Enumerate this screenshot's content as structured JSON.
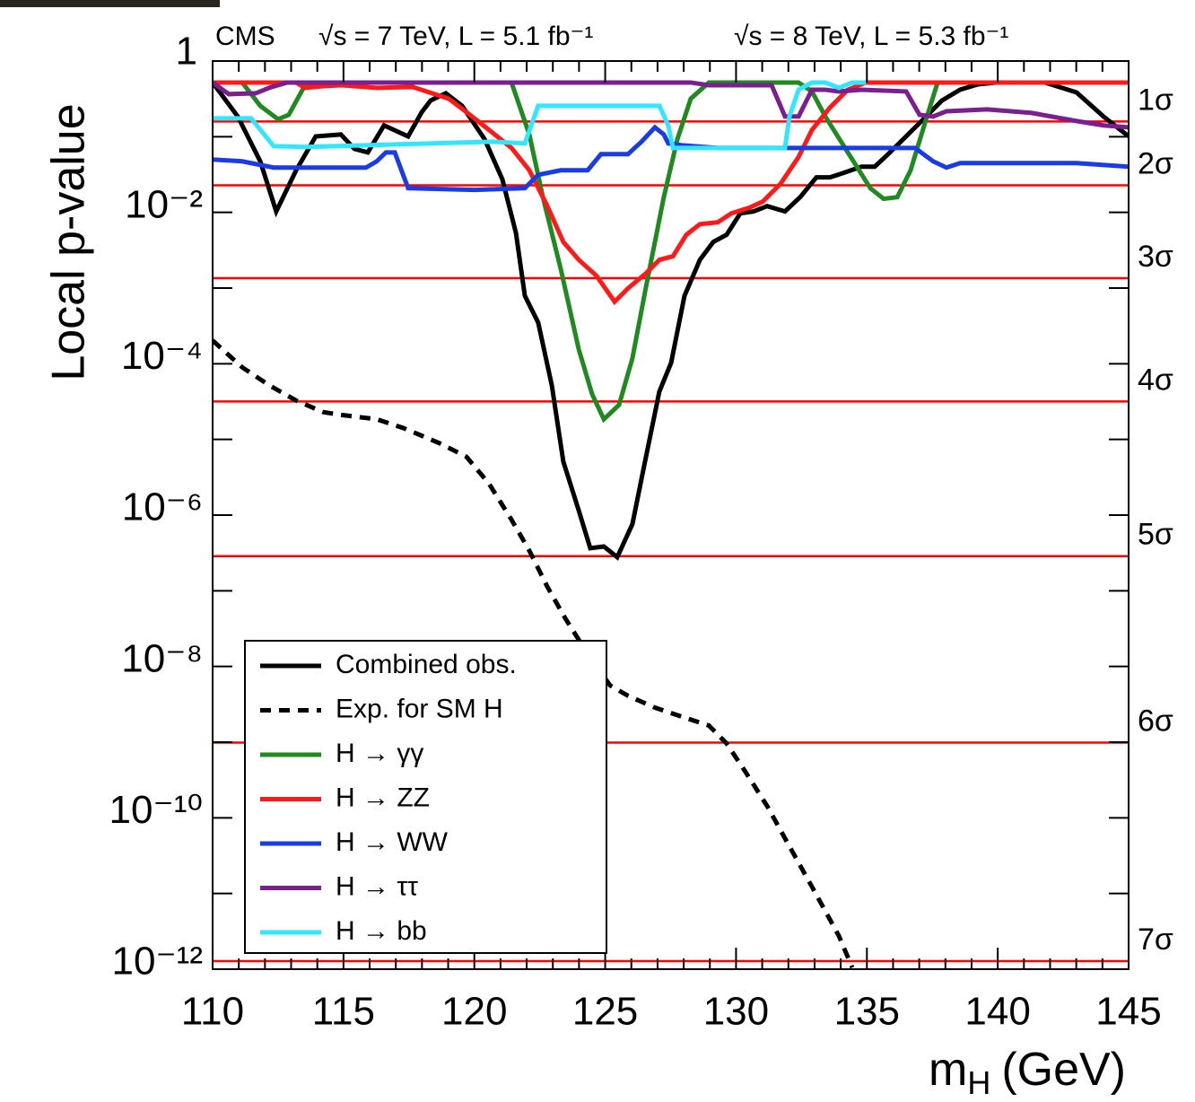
{
  "chart_data": {
    "type": "line",
    "annotations": [
      "CMS",
      "√s = 7 TeV, L = 5.1 fb⁻¹",
      "√s = 8 TeV, L = 5.3 fb⁻¹"
    ],
    "x_label": {
      "symbol": "m",
      "subscript": "H",
      "unit": "(GeV)"
    },
    "y_label": "Local p-value",
    "log_y": true,
    "xlim": [
      110,
      145
    ],
    "xticks": [
      110,
      115,
      120,
      125,
      130,
      135,
      140,
      145
    ],
    "xminorticks": [
      111,
      112,
      113,
      114,
      116,
      117,
      118,
      119,
      121,
      122,
      123,
      124,
      126,
      127,
      128,
      129,
      131,
      132,
      133,
      134,
      136,
      137,
      138,
      139,
      141,
      142,
      143,
      144
    ],
    "ylim": [
      1e-12,
      1
    ],
    "yticks": [
      1,
      {
        "value": 0.01,
        "label": "10⁻²"
      },
      {
        "value": 0.0001,
        "label": "10⁻⁴"
      },
      {
        "value": 1e-06,
        "label": "10⁻⁶"
      },
      {
        "value": 1e-08,
        "label": "10⁻⁸"
      },
      {
        "value": 1e-10,
        "label": "10⁻¹⁰"
      },
      {
        "value": 1e-12,
        "label": "10⁻¹²"
      }
    ],
    "yminorticks": [
      0.1,
      0.001,
      1e-05,
      1e-07,
      1e-09,
      1e-11
    ],
    "sigma_lines": [
      {
        "value": 0.1587,
        "label": "1σ"
      },
      {
        "value": 0.02275,
        "label": "2σ"
      },
      {
        "value": 0.00135,
        "label": "3σ"
      },
      {
        "value": 3.17e-05,
        "label": "4σ"
      },
      {
        "value": 2.87e-07,
        "label": "5σ"
      },
      {
        "value": 9.87e-10,
        "label": "6σ"
      },
      {
        "value": 1.28e-12,
        "label": "7σ"
      }
    ],
    "sigma_color": "#ff0000",
    "series": [
      {
        "name": "Combined  obs.",
        "color": "#000000",
        "x": [
          110,
          110.96,
          111.82,
          112.43,
          113.19,
          113.94,
          114.9,
          115.42,
          115.93,
          116.55,
          117.47,
          117.99,
          118.33,
          118.91,
          119.53,
          120.39,
          121.07,
          121.59,
          121.93,
          122.44,
          122.96,
          123.4,
          123.99,
          124.43,
          124.95,
          125.46,
          126.04,
          126.49,
          127.07,
          127.52,
          128.03,
          128.62,
          129.13,
          129.64,
          130.16,
          130.67,
          131.19,
          131.87,
          132.45,
          133.07,
          133.59,
          134.1,
          134.79,
          135.3,
          135.81,
          136.5,
          137.19,
          137.87,
          138.56,
          139.24,
          139.93,
          141.81,
          143.01,
          144.04,
          145
        ],
        "values": [
          0.52,
          0.185,
          0.0473,
          0.0103,
          0.036,
          0.101,
          0.107,
          0.069,
          0.062,
          0.141,
          0.101,
          0.211,
          0.301,
          0.375,
          0.256,
          0.093,
          0.0274,
          0.00535,
          0.00079,
          0.00035,
          5.2e-05,
          5.1e-06,
          1.15e-06,
          3.65e-07,
          3.85e-07,
          2.78e-07,
          7.6e-07,
          4.5e-06,
          4.3e-05,
          0.000103,
          0.00079,
          0.00236,
          0.00407,
          0.00506,
          0.0097,
          0.0103,
          0.0121,
          0.0103,
          0.0159,
          0.029,
          0.029,
          0.0332,
          0.0402,
          0.0402,
          0.0588,
          0.101,
          0.175,
          0.301,
          0.418,
          0.492,
          0.52,
          0.52,
          0.385,
          0.185,
          0.101
        ]
      },
      {
        "name": "Exp. for SM H",
        "color": "#000000",
        "line_style": "dashed",
        "x": [
          110,
          111.13,
          112.16,
          113.19,
          114.22,
          114.9,
          116.27,
          117.3,
          118.67,
          119.7,
          120.56,
          121.42,
          122.1,
          122.79,
          123.47,
          124.33,
          125.19,
          125.87,
          126.9,
          127.93,
          128.96,
          129.64,
          130.33,
          131.19,
          132.04,
          132.9,
          133.93,
          134.44
        ],
        "values": [
          0.000203,
          8.97e-05,
          5.2e-05,
          3.27e-05,
          2.3e-05,
          2.11e-05,
          1.85e-05,
          1.41e-05,
          8.9e-06,
          5.9e-06,
          2.6e-06,
          8.7e-07,
          3.4e-07,
          1.13e-07,
          4.35e-08,
          1.47e-08,
          5.6e-09,
          4.1e-09,
          2.86e-09,
          2.17e-09,
          1.66e-09,
          9.6e-10,
          4.2e-10,
          1.43e-10,
          4.2e-11,
          1.23e-11,
          2.75e-12,
          1.05e-12
        ]
      },
      {
        "name": "H → γγ",
        "color": "#1f8a1f",
        "x": [
          110,
          111.13,
          111.82,
          112.5,
          112.91,
          113.53,
          115.59,
          121.42,
          122.1,
          122.62,
          123.3,
          123.99,
          124.5,
          124.95,
          125.53,
          126.04,
          126.56,
          127.24,
          127.76,
          128.27,
          128.96,
          131.36,
          132.39,
          132.9,
          133.41,
          134.27,
          135.13,
          135.64,
          136.16,
          136.67,
          137.19,
          137.7,
          145
        ],
        "values": [
          0.52,
          0.52,
          0.256,
          0.17,
          0.195,
          0.479,
          0.52,
          0.52,
          0.107,
          0.0159,
          0.0018,
          0.000155,
          3.96e-05,
          1.85e-05,
          2.86e-05,
          0.000118,
          0.00104,
          0.0159,
          0.093,
          0.318,
          0.52,
          0.52,
          0.52,
          0.396,
          0.185,
          0.062,
          0.0209,
          0.0151,
          0.0159,
          0.036,
          0.141,
          0.52,
          0.52
        ]
      },
      {
        "name": "H → ZZ",
        "color": "#ff1a1a",
        "x": [
          110,
          113.19,
          113.53,
          114.22,
          114.9,
          116.27,
          117.64,
          119.02,
          119.7,
          120.56,
          121.42,
          122.1,
          122.79,
          123.4,
          123.99,
          124.67,
          125.36,
          125.87,
          126.56,
          127.07,
          127.59,
          128.1,
          128.62,
          129.3,
          129.82,
          130.5,
          131.02,
          131.7,
          132.39,
          132.9,
          133.59,
          134.27,
          134.96,
          145
        ],
        "values": [
          0.52,
          0.52,
          0.442,
          0.466,
          0.479,
          0.442,
          0.454,
          0.318,
          0.211,
          0.123,
          0.071,
          0.036,
          0.0121,
          0.00407,
          0.00236,
          0.00145,
          0.00066,
          0.00099,
          0.00157,
          0.00236,
          0.00263,
          0.00506,
          0.007,
          0.0074,
          0.0097,
          0.0115,
          0.0139,
          0.0239,
          0.054,
          0.123,
          0.243,
          0.418,
          0.52,
          0.52
        ]
      },
      {
        "name": "H → WW",
        "color": "#1a3ce6",
        "x": [
          110,
          111.13,
          112.33,
          115.86,
          116.27,
          116.62,
          116.96,
          117.47,
          120.04,
          121.93,
          122.44,
          123.3,
          124.33,
          124.84,
          125.87,
          126.39,
          126.9,
          127.24,
          127.41,
          127.93,
          129.3,
          136.84,
          137.53,
          138.04,
          138.56,
          139.59,
          143.01,
          145
        ],
        "values": [
          0.0499,
          0.0473,
          0.0391,
          0.0391,
          0.0473,
          0.062,
          0.062,
          0.0209,
          0.0198,
          0.0209,
          0.0314,
          0.036,
          0.036,
          0.0588,
          0.0588,
          0.086,
          0.133,
          0.107,
          0.0815,
          0.0772,
          0.071,
          0.071,
          0.0473,
          0.0391,
          0.0448,
          0.0448,
          0.0448,
          0.0402
        ]
      },
      {
        "name": "H → ττ",
        "color": "#7a1f8f",
        "x": [
          110,
          110.62,
          111.65,
          112.16,
          112.85,
          128.27,
          128.96,
          131.36,
          131.87,
          132.39,
          132.9,
          133.41,
          133.93,
          134.79,
          136.5,
          137.01,
          137.53,
          138.04,
          139.59,
          141.3,
          143.01,
          144.04,
          145
        ],
        "values": [
          0.52,
          0.365,
          0.375,
          0.442,
          0.52,
          0.52,
          0.479,
          0.479,
          0.185,
          0.185,
          0.418,
          0.418,
          0.396,
          0.418,
          0.396,
          0.195,
          0.185,
          0.217,
          0.23,
          0.206,
          0.161,
          0.141,
          0.133
        ]
      },
      {
        "name": "H → bb",
        "color": "#33e6ff",
        "x": [
          110,
          111.47,
          112.33,
          113.53,
          120.73,
          121.93,
          122.44,
          127.07,
          127.41,
          127.59,
          131.87,
          132.04,
          132.39,
          132.9,
          133.41,
          133.93,
          134.44,
          134.96
        ],
        "values": [
          0.175,
          0.175,
          0.0751,
          0.0731,
          0.086,
          0.0815,
          0.256,
          0.256,
          0.141,
          0.071,
          0.071,
          0.185,
          0.418,
          0.52,
          0.52,
          0.442,
          0.52,
          0.52
        ]
      }
    ]
  }
}
